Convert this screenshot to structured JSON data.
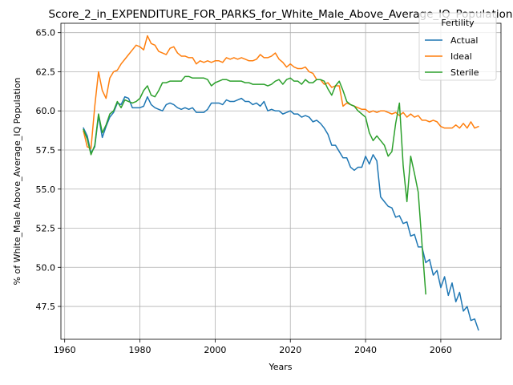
{
  "chart_data": {
    "type": "line",
    "title": "Score_2_in_EXPENDITURE_FOR_PARKS_for_White_Male_Above_Average_IQ_Population",
    "xlabel": "Years",
    "ylabel": "% of White_Male Above_Average_IQ Population",
    "xlim": [
      1959,
      2076
    ],
    "ylim": [
      45.4,
      65.6
    ],
    "xticks": [
      1960,
      1980,
      2000,
      2020,
      2040,
      2060
    ],
    "yticks": [
      47.5,
      50.0,
      52.5,
      55.0,
      57.5,
      60.0,
      62.5,
      65.0
    ],
    "ytick_labels": [
      "47.5",
      "50.0",
      "52.5",
      "55.0",
      "57.5",
      "60.0",
      "62.5",
      "65.0"
    ],
    "grid": true,
    "legend": {
      "title": "Fertility",
      "placement": "top-right"
    },
    "series": [
      {
        "name": "Actual",
        "color": "#1f77b4",
        "x": [
          1965,
          1966,
          1967,
          1968,
          1969,
          1970,
          1971,
          1972,
          1973,
          1974,
          1975,
          1976,
          1977,
          1978,
          1979,
          1980,
          1981,
          1982,
          1983,
          1984,
          1985,
          1986,
          1987,
          1988,
          1989,
          1990,
          1991,
          1992,
          1993,
          1994,
          1995,
          1996,
          1997,
          1998,
          1999,
          2000,
          2001,
          2002,
          2003,
          2004,
          2005,
          2006,
          2007,
          2008,
          2009,
          2010,
          2011,
          2012,
          2013,
          2014,
          2015,
          2016,
          2017,
          2018,
          2019,
          2020,
          2021,
          2022,
          2023,
          2024,
          2025,
          2026,
          2027,
          2028,
          2029,
          2030,
          2031,
          2032,
          2033,
          2034,
          2035,
          2036,
          2037,
          2038,
          2039,
          2040,
          2041,
          2042,
          2043,
          2044,
          2045,
          2046,
          2047,
          2048,
          2049,
          2050,
          2051,
          2052,
          2053,
          2054,
          2055,
          2056,
          2057,
          2058,
          2059,
          2060,
          2061,
          2062,
          2063,
          2064,
          2065,
          2066,
          2067,
          2068,
          2069,
          2070
        ],
        "values": [
          58.9,
          58.4,
          57.3,
          57.7,
          59.7,
          58.3,
          59.0,
          59.6,
          59.9,
          60.5,
          60.4,
          60.9,
          60.8,
          60.2,
          60.2,
          60.2,
          60.3,
          60.9,
          60.4,
          60.2,
          60.1,
          60.0,
          60.4,
          60.5,
          60.4,
          60.2,
          60.1,
          60.2,
          60.1,
          60.2,
          59.9,
          59.9,
          59.9,
          60.1,
          60.5,
          60.5,
          60.5,
          60.4,
          60.7,
          60.6,
          60.6,
          60.7,
          60.8,
          60.6,
          60.6,
          60.4,
          60.5,
          60.3,
          60.6,
          60.0,
          60.1,
          60.0,
          60.0,
          59.8,
          59.9,
          60.0,
          59.8,
          59.8,
          59.6,
          59.7,
          59.6,
          59.3,
          59.4,
          59.2,
          58.9,
          58.5,
          57.8,
          57.8,
          57.4,
          57.0,
          57.0,
          56.4,
          56.2,
          56.4,
          56.4,
          57.1,
          56.6,
          57.2,
          56.8,
          54.5,
          54.2,
          53.9,
          53.8,
          53.2,
          53.3,
          52.8,
          52.9,
          52.0,
          52.1,
          51.3,
          51.3,
          50.3,
          50.5,
          49.5,
          49.8,
          48.7,
          49.4,
          48.2,
          49.0,
          47.8,
          48.4,
          47.2,
          47.5,
          46.6,
          46.7,
          46.0
        ]
      },
      {
        "name": "Ideal",
        "color": "#ff7f0e",
        "x": [
          1965,
          1966,
          1967,
          1968,
          1969,
          1970,
          1971,
          1972,
          1973,
          1974,
          1975,
          1976,
          1977,
          1978,
          1979,
          1980,
          1981,
          1982,
          1983,
          1984,
          1985,
          1986,
          1987,
          1988,
          1989,
          1990,
          1991,
          1992,
          1993,
          1994,
          1995,
          1996,
          1997,
          1998,
          1999,
          2000,
          2001,
          2002,
          2003,
          2004,
          2005,
          2006,
          2007,
          2008,
          2009,
          2010,
          2011,
          2012,
          2013,
          2014,
          2015,
          2016,
          2017,
          2018,
          2019,
          2020,
          2021,
          2022,
          2023,
          2024,
          2025,
          2026,
          2027,
          2028,
          2029,
          2030,
          2031,
          2032,
          2033,
          2034,
          2035,
          2036,
          2037,
          2038,
          2039,
          2040,
          2041,
          2042,
          2043,
          2044,
          2045,
          2046,
          2047,
          2048,
          2049,
          2050,
          2051,
          2052,
          2053,
          2054,
          2055,
          2056,
          2057,
          2058,
          2059,
          2060,
          2061,
          2062,
          2063,
          2064,
          2065,
          2066,
          2067,
          2068,
          2069,
          2070
        ],
        "values": [
          58.7,
          57.7,
          57.6,
          60.3,
          62.5,
          61.3,
          60.8,
          62.1,
          62.5,
          62.6,
          63.0,
          63.3,
          63.6,
          63.9,
          64.2,
          64.1,
          63.9,
          64.8,
          64.3,
          64.2,
          63.8,
          63.7,
          63.6,
          64.0,
          64.1,
          63.7,
          63.5,
          63.5,
          63.4,
          63.4,
          63.0,
          63.2,
          63.1,
          63.2,
          63.1,
          63.2,
          63.2,
          63.1,
          63.4,
          63.3,
          63.4,
          63.3,
          63.4,
          63.3,
          63.2,
          63.2,
          63.3,
          63.6,
          63.4,
          63.4,
          63.5,
          63.7,
          63.3,
          63.1,
          62.8,
          63.0,
          62.8,
          62.7,
          62.7,
          62.8,
          62.5,
          62.4,
          62.0,
          62.0,
          61.7,
          61.8,
          61.5,
          61.6,
          61.6,
          60.3,
          60.5,
          60.4,
          60.3,
          60.2,
          60.1,
          60.1,
          59.9,
          60.0,
          59.9,
          60.0,
          60.0,
          59.9,
          59.8,
          59.9,
          59.7,
          59.9,
          59.6,
          59.8,
          59.6,
          59.7,
          59.4,
          59.4,
          59.3,
          59.4,
          59.3,
          59.0,
          58.9,
          58.9,
          58.9,
          59.1,
          58.9,
          59.2,
          58.9,
          59.3,
          58.9,
          59.0
        ]
      },
      {
        "name": "Sterile",
        "color": "#2ca02c",
        "x": [
          1965,
          1966,
          1967,
          1968,
          1969,
          1970,
          1971,
          1972,
          1973,
          1974,
          1975,
          1976,
          1977,
          1978,
          1979,
          1980,
          1981,
          1982,
          1983,
          1984,
          1985,
          1986,
          1987,
          1988,
          1989,
          1990,
          1991,
          1992,
          1993,
          1994,
          1995,
          1996,
          1997,
          1998,
          1999,
          2000,
          2001,
          2002,
          2003,
          2004,
          2005,
          2006,
          2007,
          2008,
          2009,
          2010,
          2011,
          2012,
          2013,
          2014,
          2015,
          2016,
          2017,
          2018,
          2019,
          2020,
          2021,
          2022,
          2023,
          2024,
          2025,
          2026,
          2027,
          2028,
          2029,
          2030,
          2031,
          2032,
          2033,
          2034,
          2035,
          2036,
          2037,
          2038,
          2039,
          2040,
          2041,
          2042,
          2043,
          2044,
          2045,
          2046,
          2047,
          2048,
          2049,
          2050,
          2051,
          2052,
          2053,
          2054,
          2055,
          2056
        ],
        "values": [
          58.8,
          58.2,
          57.2,
          57.8,
          59.8,
          58.6,
          59.1,
          59.8,
          60.0,
          60.6,
          60.2,
          60.7,
          60.6,
          60.5,
          60.6,
          60.8,
          61.3,
          61.6,
          61.0,
          60.9,
          61.3,
          61.8,
          61.8,
          61.9,
          61.9,
          61.9,
          61.9,
          62.2,
          62.2,
          62.1,
          62.1,
          62.1,
          62.1,
          62.0,
          61.6,
          61.8,
          61.9,
          62.0,
          62.0,
          61.9,
          61.9,
          61.9,
          61.9,
          61.8,
          61.8,
          61.7,
          61.7,
          61.7,
          61.7,
          61.6,
          61.7,
          61.9,
          62.0,
          61.7,
          62.0,
          62.1,
          61.9,
          61.9,
          61.7,
          62.0,
          61.8,
          61.8,
          62.0,
          62.0,
          61.9,
          61.4,
          61.0,
          61.6,
          61.9,
          61.3,
          60.6,
          60.4,
          60.3,
          60.0,
          59.8,
          59.6,
          58.6,
          58.1,
          58.4,
          58.1,
          57.8,
          57.1,
          57.4,
          59.2,
          60.5,
          56.5,
          54.2,
          57.1,
          56.0,
          54.8,
          51.5,
          48.3
        ]
      }
    ]
  }
}
